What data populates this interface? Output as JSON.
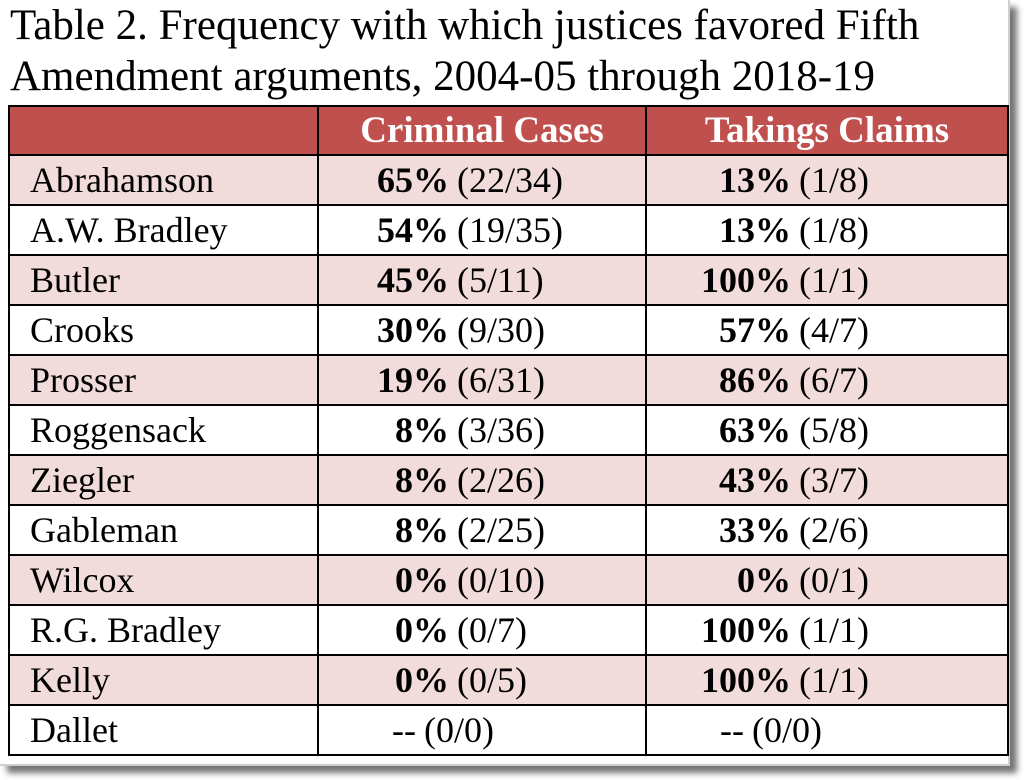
{
  "title": {
    "line1": "Table 2.  Frequency with which justices favored Fifth",
    "line2": "Amendment arguments, 2004-05 through 2018-19"
  },
  "headers": {
    "justice": "",
    "criminal": "Criminal Cases",
    "takings": "Takings Claims"
  },
  "rows": [
    {
      "justice": "Abrahamson",
      "criminal": {
        "pct": "65%",
        "frac": "(22/34)"
      },
      "takings": {
        "pct": "13%",
        "frac": "(1/8)"
      }
    },
    {
      "justice": "A.W. Bradley",
      "criminal": {
        "pct": "54%",
        "frac": "(19/35)"
      },
      "takings": {
        "pct": "13%",
        "frac": "(1/8)"
      }
    },
    {
      "justice": "Butler",
      "criminal": {
        "pct": "45%",
        "frac": "(5/11)"
      },
      "takings": {
        "pct": "100%",
        "frac": "(1/1)"
      }
    },
    {
      "justice": "Crooks",
      "criminal": {
        "pct": "30%",
        "frac": "(9/30)"
      },
      "takings": {
        "pct": "57%",
        "frac": "(4/7)"
      }
    },
    {
      "justice": "Prosser",
      "criminal": {
        "pct": "19%",
        "frac": "(6/31)"
      },
      "takings": {
        "pct": "86%",
        "frac": "(6/7)"
      }
    },
    {
      "justice": "Roggensack",
      "criminal": {
        "pct": "8%",
        "frac": "(3/36)"
      },
      "takings": {
        "pct": "63%",
        "frac": "(5/8)"
      }
    },
    {
      "justice": "Ziegler",
      "criminal": {
        "pct": "8%",
        "frac": "(2/26)"
      },
      "takings": {
        "pct": "43%",
        "frac": "(3/7)"
      }
    },
    {
      "justice": "Gableman",
      "criminal": {
        "pct": "8%",
        "frac": "(2/25)"
      },
      "takings": {
        "pct": "33%",
        "frac": "(2/6)"
      }
    },
    {
      "justice": "Wilcox",
      "criminal": {
        "pct": "0%",
        "frac": "(0/10)"
      },
      "takings": {
        "pct": "0%",
        "frac": "(0/1)"
      }
    },
    {
      "justice": "R.G. Bradley",
      "criminal": {
        "pct": "0%",
        "frac": "(0/7)"
      },
      "takings": {
        "pct": "100%",
        "frac": "(1/1)"
      }
    },
    {
      "justice": "Kelly",
      "criminal": {
        "pct": "0%",
        "frac": "(0/5)"
      },
      "takings": {
        "pct": "100%",
        "frac": "(1/1)"
      }
    },
    {
      "justice": "Dallet",
      "criminal": {
        "pct": "--",
        "frac": "(0/0)"
      },
      "takings": {
        "pct": "--",
        "frac": "(0/0)"
      }
    }
  ],
  "colors": {
    "header_bg": "#c0504d",
    "header_text": "#ffffff",
    "band_bg": "#f2dcdb"
  }
}
